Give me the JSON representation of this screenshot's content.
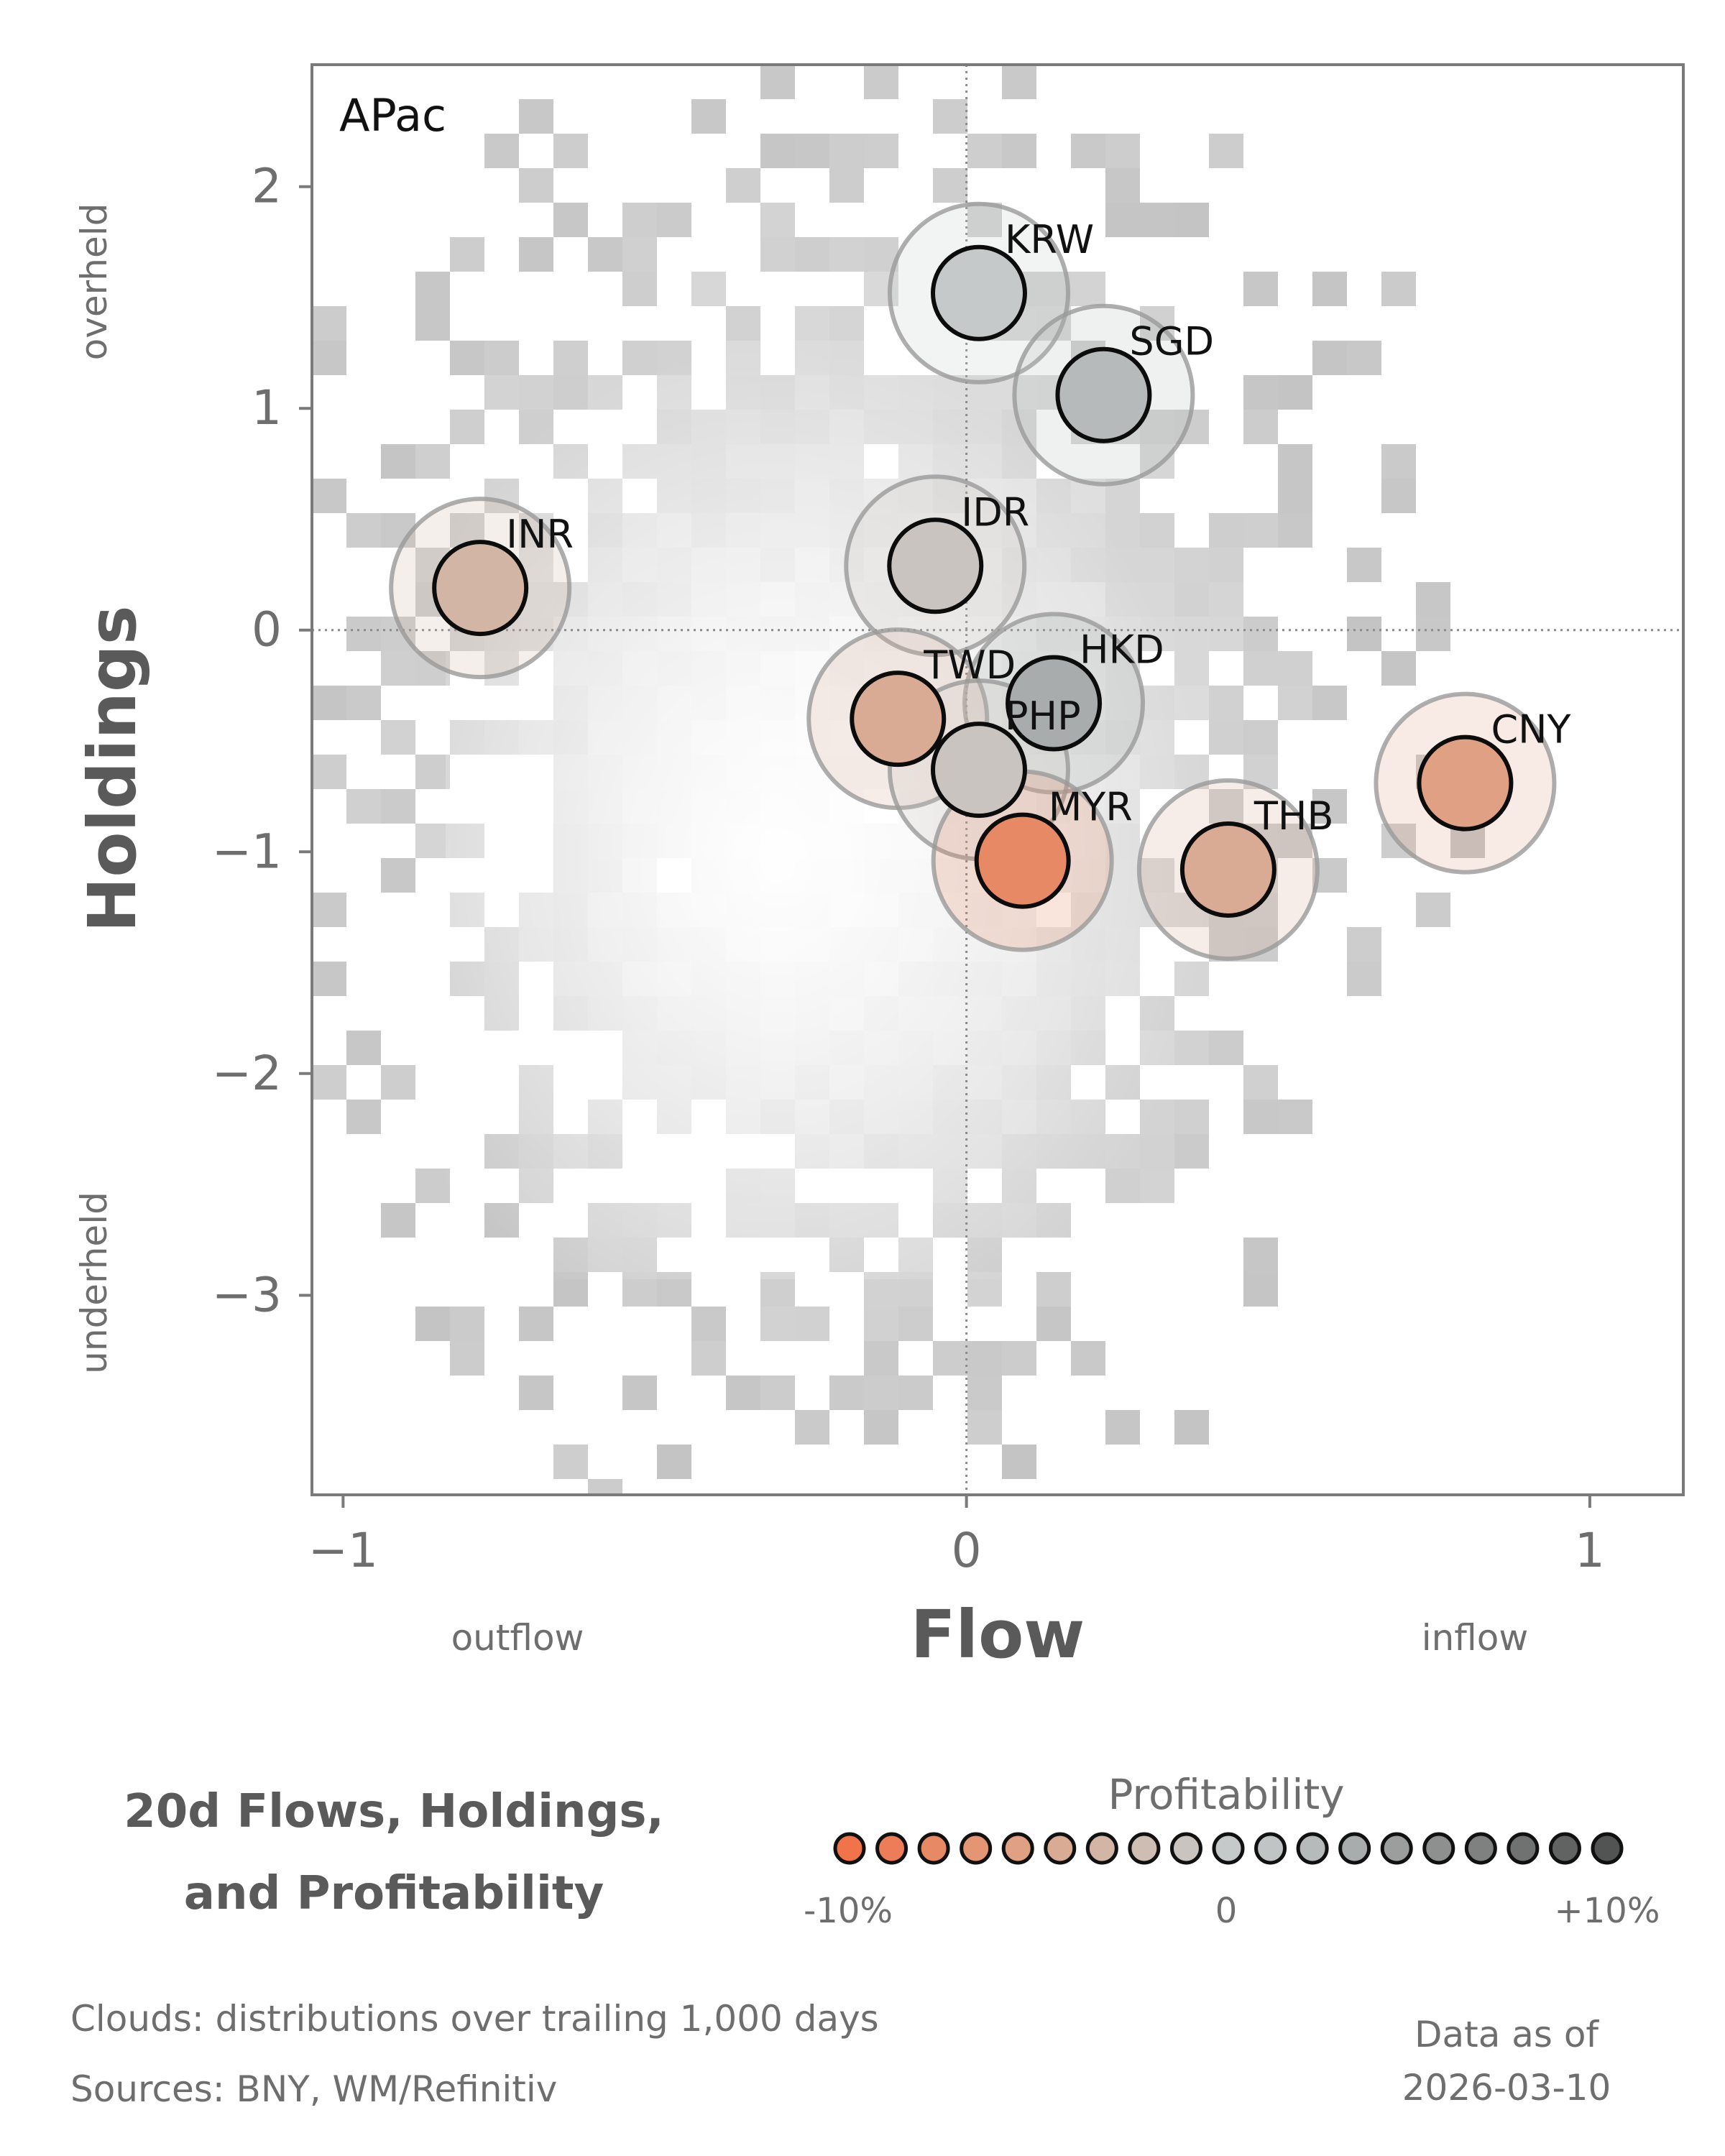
{
  "chart_data": {
    "type": "scatter",
    "panel_label": "APac",
    "xlabel": "Flow",
    "ylabel": "Holdings",
    "xlim": [
      -1.05,
      1.15
    ],
    "ylim": [
      -3.9,
      2.55
    ],
    "x_ticks": [
      {
        "value": -1,
        "label": "−1"
      },
      {
        "value": 0,
        "label": "0"
      },
      {
        "value": 1,
        "label": "1"
      }
    ],
    "y_ticks": [
      {
        "value": 2,
        "label": "2"
      },
      {
        "value": 1,
        "label": "1"
      },
      {
        "value": 0,
        "label": "0"
      },
      {
        "value": -1,
        "label": "−1"
      },
      {
        "value": -2,
        "label": "−2"
      },
      {
        "value": -3,
        "label": "−3"
      }
    ],
    "x_side_labels": {
      "left": "outflow",
      "right": "inflow"
    },
    "y_side_labels": {
      "top": "overheld",
      "bottom": "underheld"
    },
    "reference_lines": {
      "x": 0,
      "y": 0
    },
    "cloud": {
      "description_visible": false,
      "kind": "2d-histogram",
      "color": "#c8c8c8"
    },
    "points": [
      {
        "name": "KRW",
        "x": 0.02,
        "y": 1.52,
        "profitability": 0.0
      },
      {
        "name": "SGD",
        "x": 0.22,
        "y": 1.06,
        "profitability": 0.02
      },
      {
        "name": "INR",
        "x": -0.78,
        "y": 0.19,
        "profitability": -0.03
      },
      {
        "name": "IDR",
        "x": -0.05,
        "y": 0.29,
        "profitability": -0.01
      },
      {
        "name": "HKD",
        "x": 0.14,
        "y": -0.33,
        "profitability": 0.03
      },
      {
        "name": "TWD",
        "x": -0.11,
        "y": -0.4,
        "profitability": -0.05
      },
      {
        "name": "PHP",
        "x": 0.02,
        "y": -0.63,
        "profitability": -0.01
      },
      {
        "name": "MYR",
        "x": 0.09,
        "y": -1.04,
        "profitability": -0.08
      },
      {
        "name": "THB",
        "x": 0.42,
        "y": -1.08,
        "profitability": -0.05
      },
      {
        "name": "CNY",
        "x": 0.8,
        "y": -0.69,
        "profitability": -0.06
      }
    ],
    "title": "20d Flows, Holdings, and Profitability",
    "legend": {
      "title": "Profitability",
      "min_label": "-10%",
      "mid_label": "0",
      "max_label": "+10%",
      "colors": [
        "#f0734a",
        "#ec7d58",
        "#e88966",
        "#e49573",
        "#dfa084",
        "#d9ab94",
        "#d3b5a6",
        "#cdbdb3",
        "#c9c4bf",
        "#c6c9c9",
        "#c0c4c4",
        "#b6baba",
        "#a9acac",
        "#9c9e9e",
        "#8e9090",
        "#7f8181",
        "#707171",
        "#616262",
        "#525353"
      ]
    }
  },
  "footer": {
    "clouds_note": "Clouds:  distributions over trailing 1,000 days",
    "sources": "Sources:  BNY, WM/Refinitiv",
    "data_as_of_label": "Data as of",
    "data_as_of_date": "2026-03-10"
  }
}
